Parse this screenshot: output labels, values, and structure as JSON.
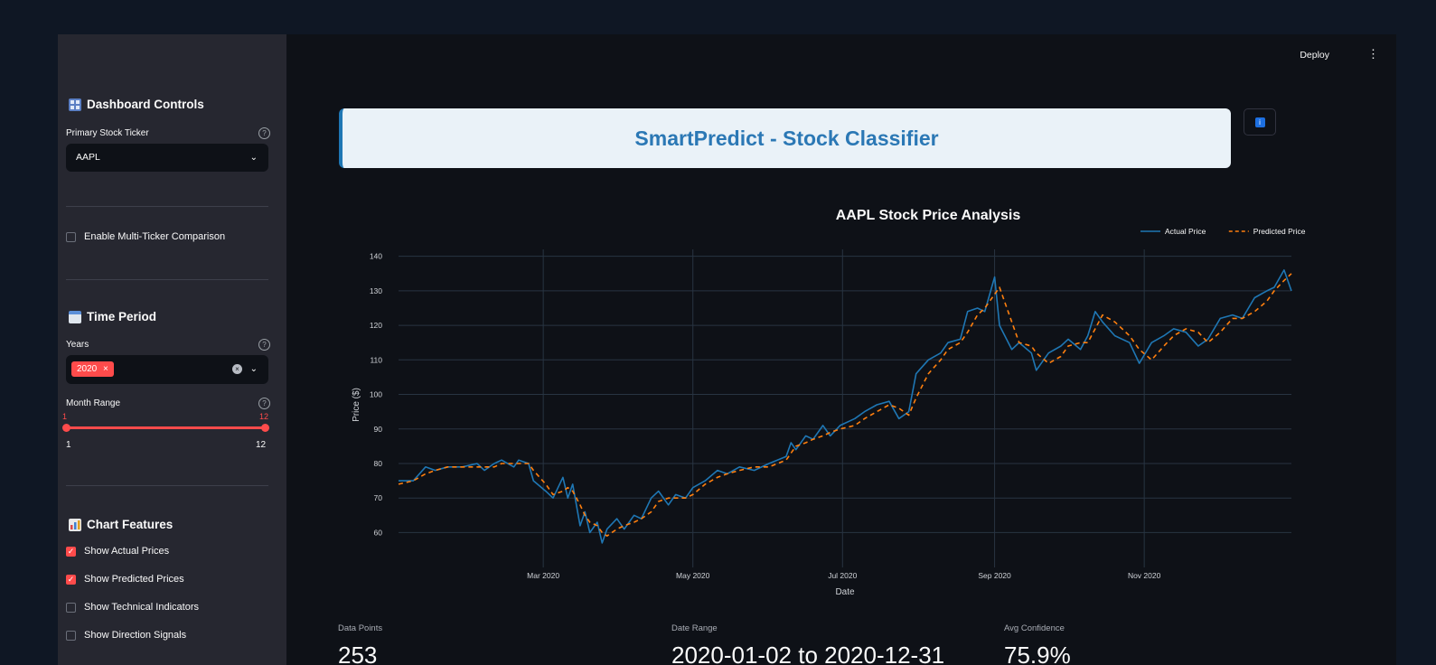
{
  "sidebar": {
    "controls_title": "Dashboard Controls",
    "primary_ticker_label": "Primary Stock Ticker",
    "primary_ticker_value": "AAPL",
    "multi_ticker_label": "Enable Multi-Ticker Comparison",
    "time_period_title": "Time Period",
    "years_label": "Years",
    "years_selected": "2020",
    "month_range_label": "Month Range",
    "month_range": {
      "low": 1,
      "high": 12,
      "min": 1,
      "max": 12,
      "low_text": "1",
      "high_text": "12",
      "min_text": "1",
      "max_text": "12"
    },
    "chart_features_title": "Chart Features",
    "features": [
      {
        "label": "Show Actual Prices",
        "checked": true
      },
      {
        "label": "Show Predicted Prices",
        "checked": true
      },
      {
        "label": "Show Technical Indicators",
        "checked": false
      },
      {
        "label": "Show Direction Signals",
        "checked": false
      }
    ]
  },
  "header": {
    "deploy_label": "Deploy",
    "menu_icon": "kebab-icon"
  },
  "banner": {
    "title": "SmartPredict - Stock Classifier"
  },
  "colors": {
    "accent": "#ff4b4b",
    "actual": "#1f77b4",
    "predicted": "#ff7f0e",
    "banner_text": "#2b78b5"
  },
  "chart_data": {
    "type": "line",
    "title": "AAPL Stock Price Analysis",
    "xlabel": "Date",
    "ylabel": "Price ($)",
    "legend_position": "top-right",
    "grid": true,
    "ylim": [
      52,
      142
    ],
    "xlim": [
      "2020-01-02",
      "2020-12-31"
    ],
    "yticks": [
      60,
      70,
      80,
      90,
      100,
      110,
      120,
      130,
      140
    ],
    "xticks": [
      {
        "date": "2020-03-01",
        "label": "Mar 2020"
      },
      {
        "date": "2020-05-01",
        "label": "May 2020"
      },
      {
        "date": "2020-07-01",
        "label": "Jul 2020"
      },
      {
        "date": "2020-09-01",
        "label": "Sep 2020"
      },
      {
        "date": "2020-11-01",
        "label": "Nov 2020"
      }
    ],
    "series": [
      {
        "name": "Actual Price",
        "points": [
          [
            "2020-01-02",
            75
          ],
          [
            "2020-01-08",
            75
          ],
          [
            "2020-01-13",
            79
          ],
          [
            "2020-01-17",
            78
          ],
          [
            "2020-01-22",
            79
          ],
          [
            "2020-01-28",
            79
          ],
          [
            "2020-02-03",
            80
          ],
          [
            "2020-02-06",
            78
          ],
          [
            "2020-02-10",
            80
          ],
          [
            "2020-02-13",
            81
          ],
          [
            "2020-02-18",
            79
          ],
          [
            "2020-02-20",
            81
          ],
          [
            "2020-02-24",
            80
          ],
          [
            "2020-02-26",
            75
          ],
          [
            "2020-03-02",
            72
          ],
          [
            "2020-03-05",
            70
          ],
          [
            "2020-03-09",
            76
          ],
          [
            "2020-03-11",
            70
          ],
          [
            "2020-03-13",
            74
          ],
          [
            "2020-03-16",
            62
          ],
          [
            "2020-03-18",
            66
          ],
          [
            "2020-03-20",
            60
          ],
          [
            "2020-03-23",
            63
          ],
          [
            "2020-03-25",
            57
          ],
          [
            "2020-03-27",
            61
          ],
          [
            "2020-03-31",
            64
          ],
          [
            "2020-04-03",
            61
          ],
          [
            "2020-04-07",
            65
          ],
          [
            "2020-04-10",
            64
          ],
          [
            "2020-04-14",
            70
          ],
          [
            "2020-04-17",
            72
          ],
          [
            "2020-04-21",
            68
          ],
          [
            "2020-04-24",
            71
          ],
          [
            "2020-04-28",
            70
          ],
          [
            "2020-05-01",
            73
          ],
          [
            "2020-05-06",
            75
          ],
          [
            "2020-05-11",
            78
          ],
          [
            "2020-05-15",
            77
          ],
          [
            "2020-05-20",
            79
          ],
          [
            "2020-05-26",
            78
          ],
          [
            "2020-06-01",
            80
          ],
          [
            "2020-06-08",
            82
          ],
          [
            "2020-06-10",
            86
          ],
          [
            "2020-06-12",
            84
          ],
          [
            "2020-06-16",
            88
          ],
          [
            "2020-06-19",
            87
          ],
          [
            "2020-06-23",
            91
          ],
          [
            "2020-06-26",
            88
          ],
          [
            "2020-06-30",
            91
          ],
          [
            "2020-07-06",
            93
          ],
          [
            "2020-07-10",
            95
          ],
          [
            "2020-07-15",
            97
          ],
          [
            "2020-07-20",
            98
          ],
          [
            "2020-07-24",
            93
          ],
          [
            "2020-07-28",
            95
          ],
          [
            "2020-07-31",
            106
          ],
          [
            "2020-08-05",
            110
          ],
          [
            "2020-08-10",
            112
          ],
          [
            "2020-08-13",
            115
          ],
          [
            "2020-08-18",
            116
          ],
          [
            "2020-08-21",
            124
          ],
          [
            "2020-08-25",
            125
          ],
          [
            "2020-08-28",
            124
          ],
          [
            "2020-09-01",
            134
          ],
          [
            "2020-09-03",
            120
          ],
          [
            "2020-09-08",
            113
          ],
          [
            "2020-09-11",
            115
          ],
          [
            "2020-09-16",
            112
          ],
          [
            "2020-09-18",
            107
          ],
          [
            "2020-09-23",
            112
          ],
          [
            "2020-09-28",
            114
          ],
          [
            "2020-10-01",
            116
          ],
          [
            "2020-10-06",
            113
          ],
          [
            "2020-10-09",
            117
          ],
          [
            "2020-10-12",
            124
          ],
          [
            "2020-10-15",
            121
          ],
          [
            "2020-10-20",
            117
          ],
          [
            "2020-10-26",
            115
          ],
          [
            "2020-10-30",
            109
          ],
          [
            "2020-11-04",
            115
          ],
          [
            "2020-11-09",
            117
          ],
          [
            "2020-11-13",
            119
          ],
          [
            "2020-11-18",
            118
          ],
          [
            "2020-11-23",
            114
          ],
          [
            "2020-11-27",
            116
          ],
          [
            "2020-12-02",
            122
          ],
          [
            "2020-12-07",
            123
          ],
          [
            "2020-12-11",
            122
          ],
          [
            "2020-12-16",
            128
          ],
          [
            "2020-12-21",
            130
          ],
          [
            "2020-12-24",
            131
          ],
          [
            "2020-12-28",
            136
          ],
          [
            "2020-12-31",
            130
          ]
        ]
      },
      {
        "name": "Predicted Price",
        "points": [
          [
            "2020-01-02",
            74
          ],
          [
            "2020-01-08",
            75
          ],
          [
            "2020-01-13",
            77
          ],
          [
            "2020-01-17",
            78
          ],
          [
            "2020-01-22",
            79
          ],
          [
            "2020-01-28",
            79
          ],
          [
            "2020-02-03",
            79
          ],
          [
            "2020-02-06",
            79
          ],
          [
            "2020-02-10",
            79
          ],
          [
            "2020-02-13",
            80
          ],
          [
            "2020-02-18",
            80
          ],
          [
            "2020-02-20",
            80
          ],
          [
            "2020-02-24",
            80
          ],
          [
            "2020-02-26",
            78
          ],
          [
            "2020-03-02",
            74
          ],
          [
            "2020-03-05",
            71
          ],
          [
            "2020-03-09",
            72
          ],
          [
            "2020-03-11",
            73
          ],
          [
            "2020-03-13",
            72
          ],
          [
            "2020-03-16",
            68
          ],
          [
            "2020-03-18",
            65
          ],
          [
            "2020-03-20",
            63
          ],
          [
            "2020-03-23",
            62
          ],
          [
            "2020-03-25",
            60
          ],
          [
            "2020-03-27",
            59
          ],
          [
            "2020-03-31",
            61
          ],
          [
            "2020-04-03",
            62
          ],
          [
            "2020-04-07",
            63
          ],
          [
            "2020-04-10",
            64
          ],
          [
            "2020-04-14",
            66
          ],
          [
            "2020-04-17",
            69
          ],
          [
            "2020-04-21",
            70
          ],
          [
            "2020-04-24",
            70
          ],
          [
            "2020-04-28",
            70
          ],
          [
            "2020-05-01",
            71
          ],
          [
            "2020-05-06",
            74
          ],
          [
            "2020-05-11",
            76
          ],
          [
            "2020-05-15",
            77
          ],
          [
            "2020-05-20",
            78
          ],
          [
            "2020-05-26",
            79
          ],
          [
            "2020-06-01",
            79
          ],
          [
            "2020-06-08",
            81
          ],
          [
            "2020-06-10",
            83
          ],
          [
            "2020-06-12",
            85
          ],
          [
            "2020-06-16",
            86
          ],
          [
            "2020-06-19",
            87
          ],
          [
            "2020-06-23",
            88
          ],
          [
            "2020-06-26",
            89
          ],
          [
            "2020-06-30",
            90
          ],
          [
            "2020-07-06",
            91
          ],
          [
            "2020-07-10",
            93
          ],
          [
            "2020-07-15",
            95
          ],
          [
            "2020-07-20",
            97
          ],
          [
            "2020-07-24",
            96
          ],
          [
            "2020-07-28",
            94
          ],
          [
            "2020-07-31",
            99
          ],
          [
            "2020-08-05",
            106
          ],
          [
            "2020-08-10",
            110
          ],
          [
            "2020-08-13",
            113
          ],
          [
            "2020-08-18",
            115
          ],
          [
            "2020-08-21",
            118
          ],
          [
            "2020-08-25",
            123
          ],
          [
            "2020-08-28",
            125
          ],
          [
            "2020-09-01",
            129
          ],
          [
            "2020-09-03",
            131
          ],
          [
            "2020-09-08",
            121
          ],
          [
            "2020-09-11",
            115
          ],
          [
            "2020-09-16",
            114
          ],
          [
            "2020-09-18",
            112
          ],
          [
            "2020-09-23",
            109
          ],
          [
            "2020-09-28",
            111
          ],
          [
            "2020-10-01",
            114
          ],
          [
            "2020-10-06",
            115
          ],
          [
            "2020-10-09",
            115
          ],
          [
            "2020-10-12",
            119
          ],
          [
            "2020-10-15",
            123
          ],
          [
            "2020-10-20",
            121
          ],
          [
            "2020-10-26",
            117
          ],
          [
            "2020-10-30",
            113
          ],
          [
            "2020-11-04",
            110
          ],
          [
            "2020-11-09",
            114
          ],
          [
            "2020-11-13",
            117
          ],
          [
            "2020-11-18",
            119
          ],
          [
            "2020-11-23",
            118
          ],
          [
            "2020-11-27",
            115
          ],
          [
            "2020-12-02",
            118
          ],
          [
            "2020-12-07",
            122
          ],
          [
            "2020-12-11",
            122
          ],
          [
            "2020-12-16",
            124
          ],
          [
            "2020-12-21",
            127
          ],
          [
            "2020-12-24",
            130
          ],
          [
            "2020-12-28",
            133
          ],
          [
            "2020-12-31",
            135
          ]
        ]
      }
    ]
  },
  "metrics": [
    {
      "label": "Data Points",
      "value": "253"
    },
    {
      "label": "Date Range",
      "value": "2020-01-02 to 2020-12-31"
    },
    {
      "label": "Avg Confidence",
      "value": "75.9%"
    }
  ]
}
